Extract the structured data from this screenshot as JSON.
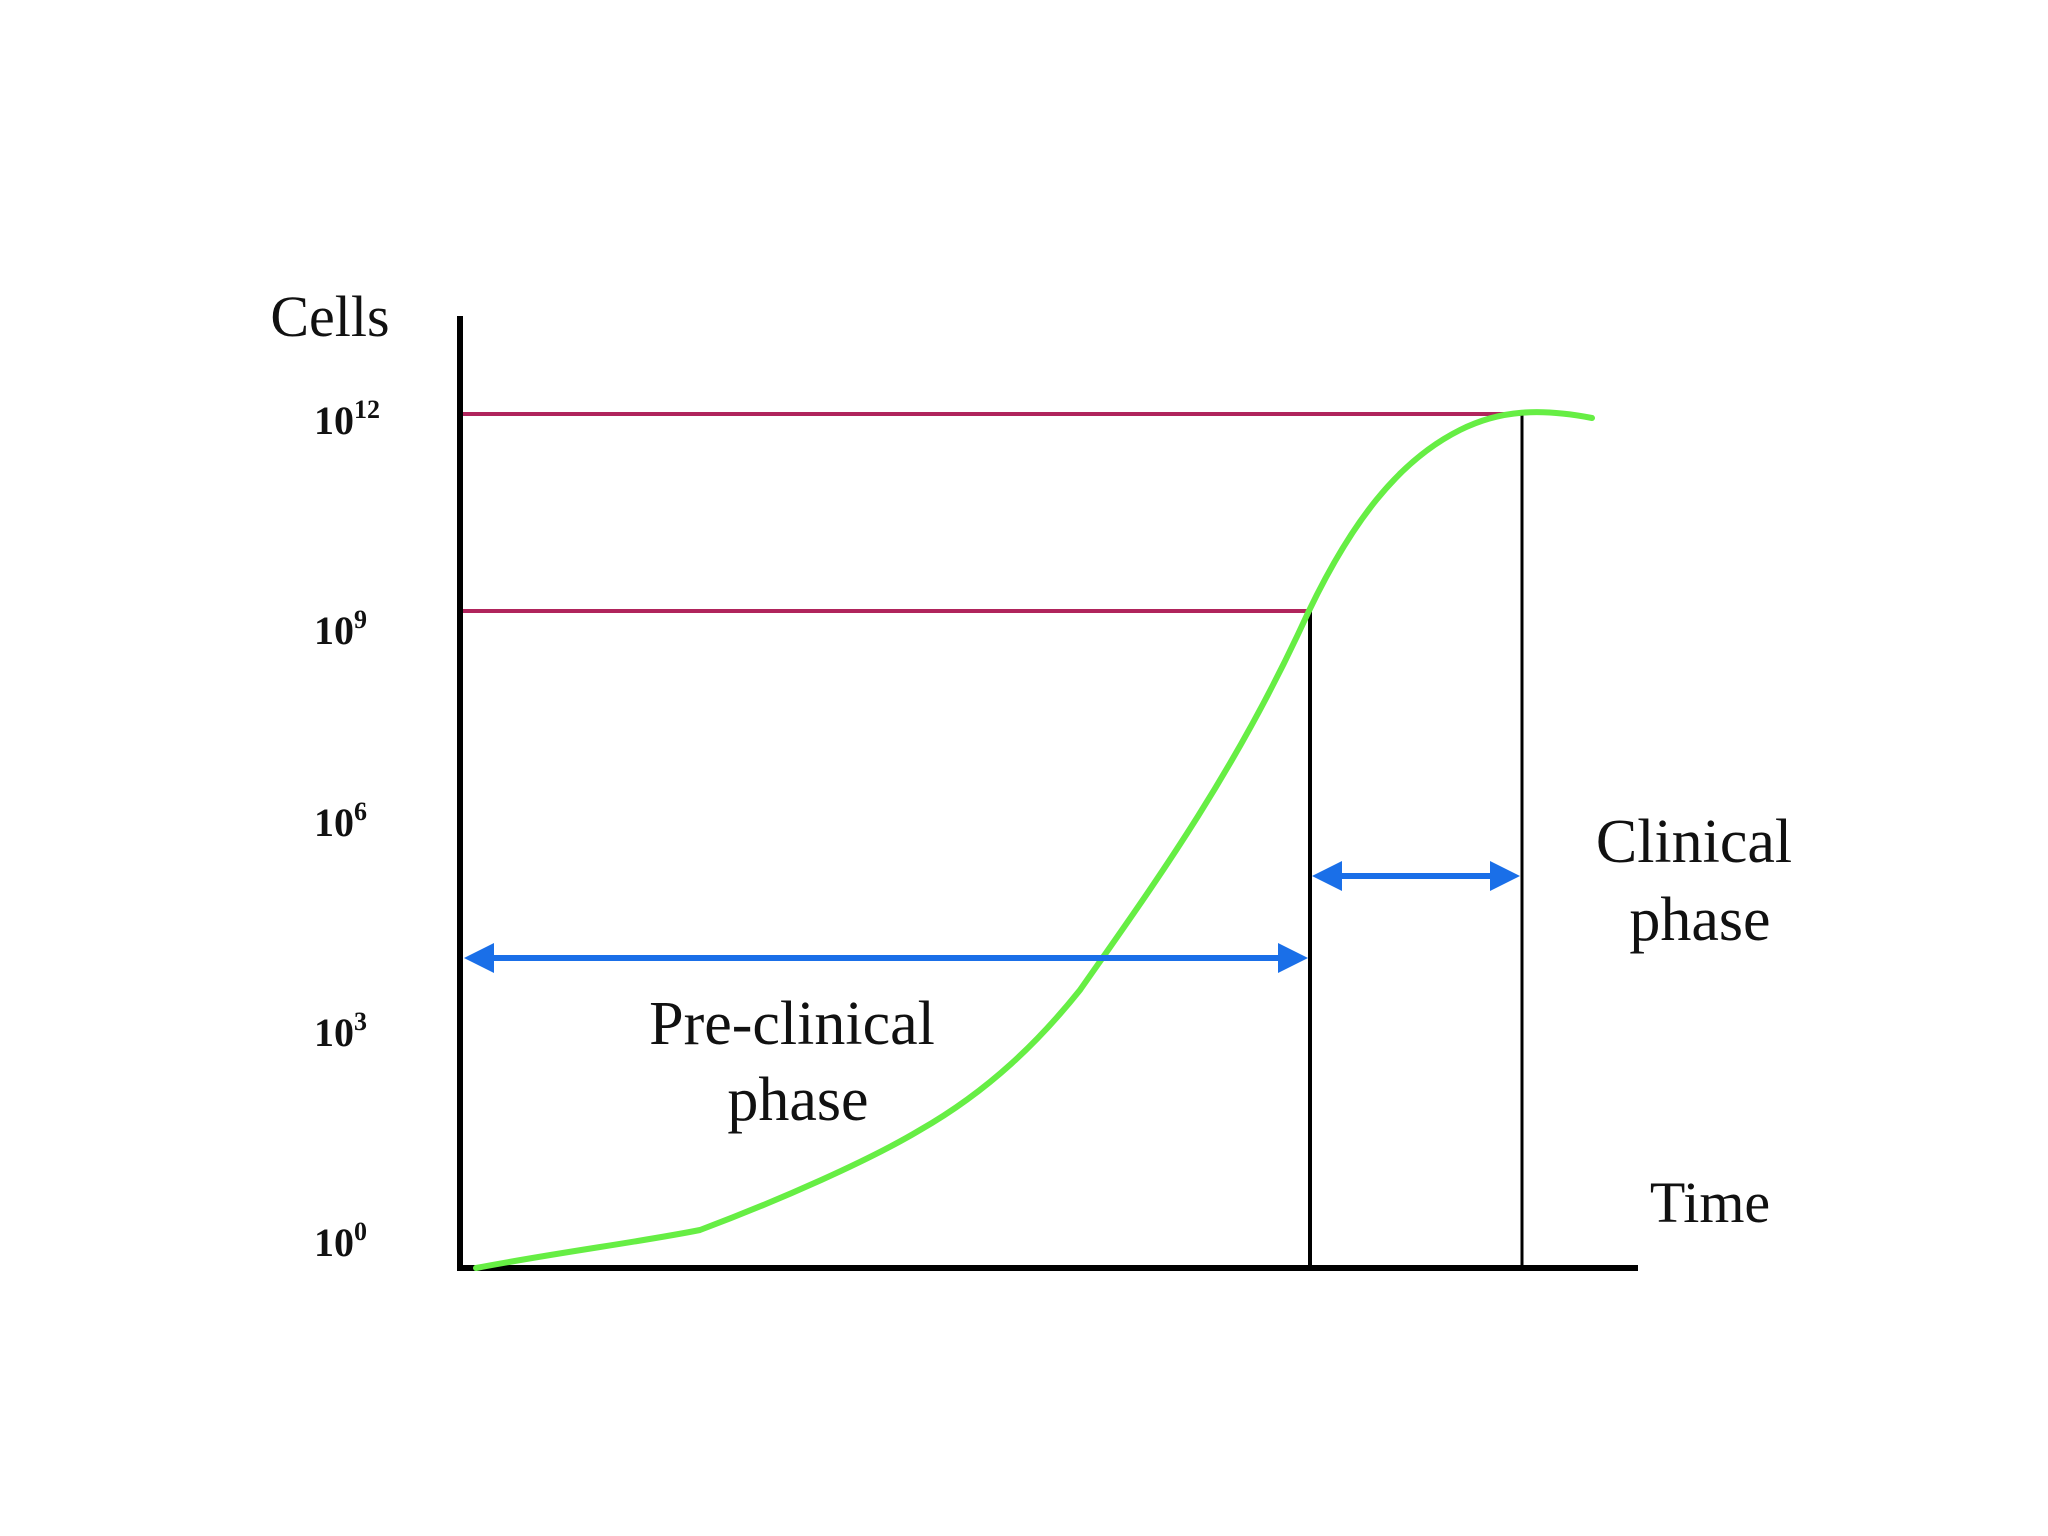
{
  "diagram": {
    "y_axis_title": "Cells",
    "x_axis_title": "Time",
    "y_ticks": [
      {
        "base": "10",
        "exponent": "12"
      },
      {
        "base": "10",
        "exponent": "9"
      },
      {
        "base": "10",
        "exponent": "6"
      },
      {
        "base": "10",
        "exponent": "3"
      },
      {
        "base": "10",
        "exponent": "0"
      }
    ],
    "preclinical_label": {
      "line1": "Pre-clinical",
      "line2": "phase"
    },
    "clinical_label": {
      "line1": "Clinical",
      "line2": "phase"
    },
    "colors": {
      "axis": "#000000",
      "threshold_lines": "#b0245c",
      "growth_curve": "#66ee44",
      "phase_arrows": "#1a6fe8"
    }
  }
}
